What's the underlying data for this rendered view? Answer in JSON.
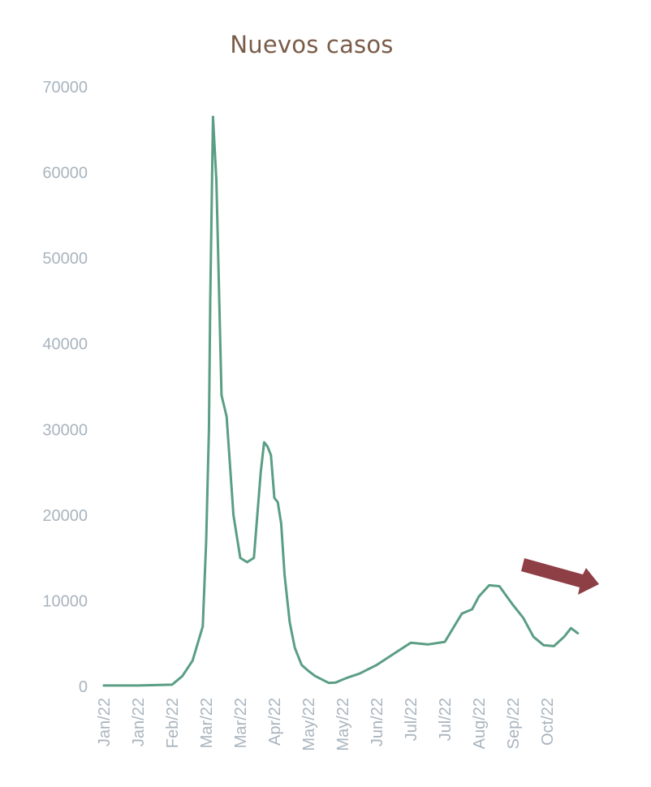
{
  "chart_data": {
    "type": "line",
    "title": "Nuevos casos",
    "xlabel": "",
    "ylabel": "",
    "ylim": [
      0,
      70000
    ],
    "yticks": [
      0,
      10000,
      20000,
      30000,
      40000,
      50000,
      60000,
      70000
    ],
    "xtick_labels": [
      "Jan/22",
      "Jan/22",
      "Feb/22",
      "Mar/22",
      "Mar/22",
      "Apr/22",
      "May/22",
      "May/22",
      "Jun/22",
      "Jul/22",
      "Jul/22",
      "Aug/22",
      "Sep/22",
      "Oct/22"
    ],
    "grid": false,
    "legend": "none",
    "line_color": "#5a9e84",
    "series": [
      {
        "name": "",
        "x_index": [
          0,
          1,
          2,
          2.3,
          2.6,
          2.9,
          3.0,
          3.08,
          3.12,
          3.2,
          3.3,
          3.45,
          3.6,
          3.8,
          4.0,
          4.2,
          4.4,
          4.6,
          4.7,
          4.8,
          4.9,
          5.0,
          5.1,
          5.2,
          5.3,
          5.45,
          5.6,
          5.8,
          6.0,
          6.2,
          6.4,
          6.6,
          6.8,
          7.0,
          7.2,
          7.5,
          8.0,
          8.5,
          9.0,
          9.5,
          10.0,
          10.5,
          10.8,
          11.0,
          11.3,
          11.6,
          12.0,
          12.3,
          12.6,
          12.9,
          13.2,
          13.5,
          13.7,
          13.9
        ],
        "values": [
          100,
          100,
          200,
          1200,
          3000,
          7000,
          17000,
          30000,
          45000,
          66500,
          59000,
          34000,
          31500,
          20000,
          15000,
          14500,
          15000,
          25000,
          28500,
          28000,
          27000,
          22000,
          21500,
          19000,
          13000,
          7500,
          4500,
          2500,
          1800,
          1200,
          800,
          400,
          450,
          800,
          1100,
          1500,
          2500,
          3800,
          5100,
          4900,
          5200,
          8500,
          9000,
          10500,
          11800,
          11700,
          9500,
          8000,
          5800,
          4800,
          4700,
          5800,
          6800,
          6200
        ]
      }
    ]
  }
}
